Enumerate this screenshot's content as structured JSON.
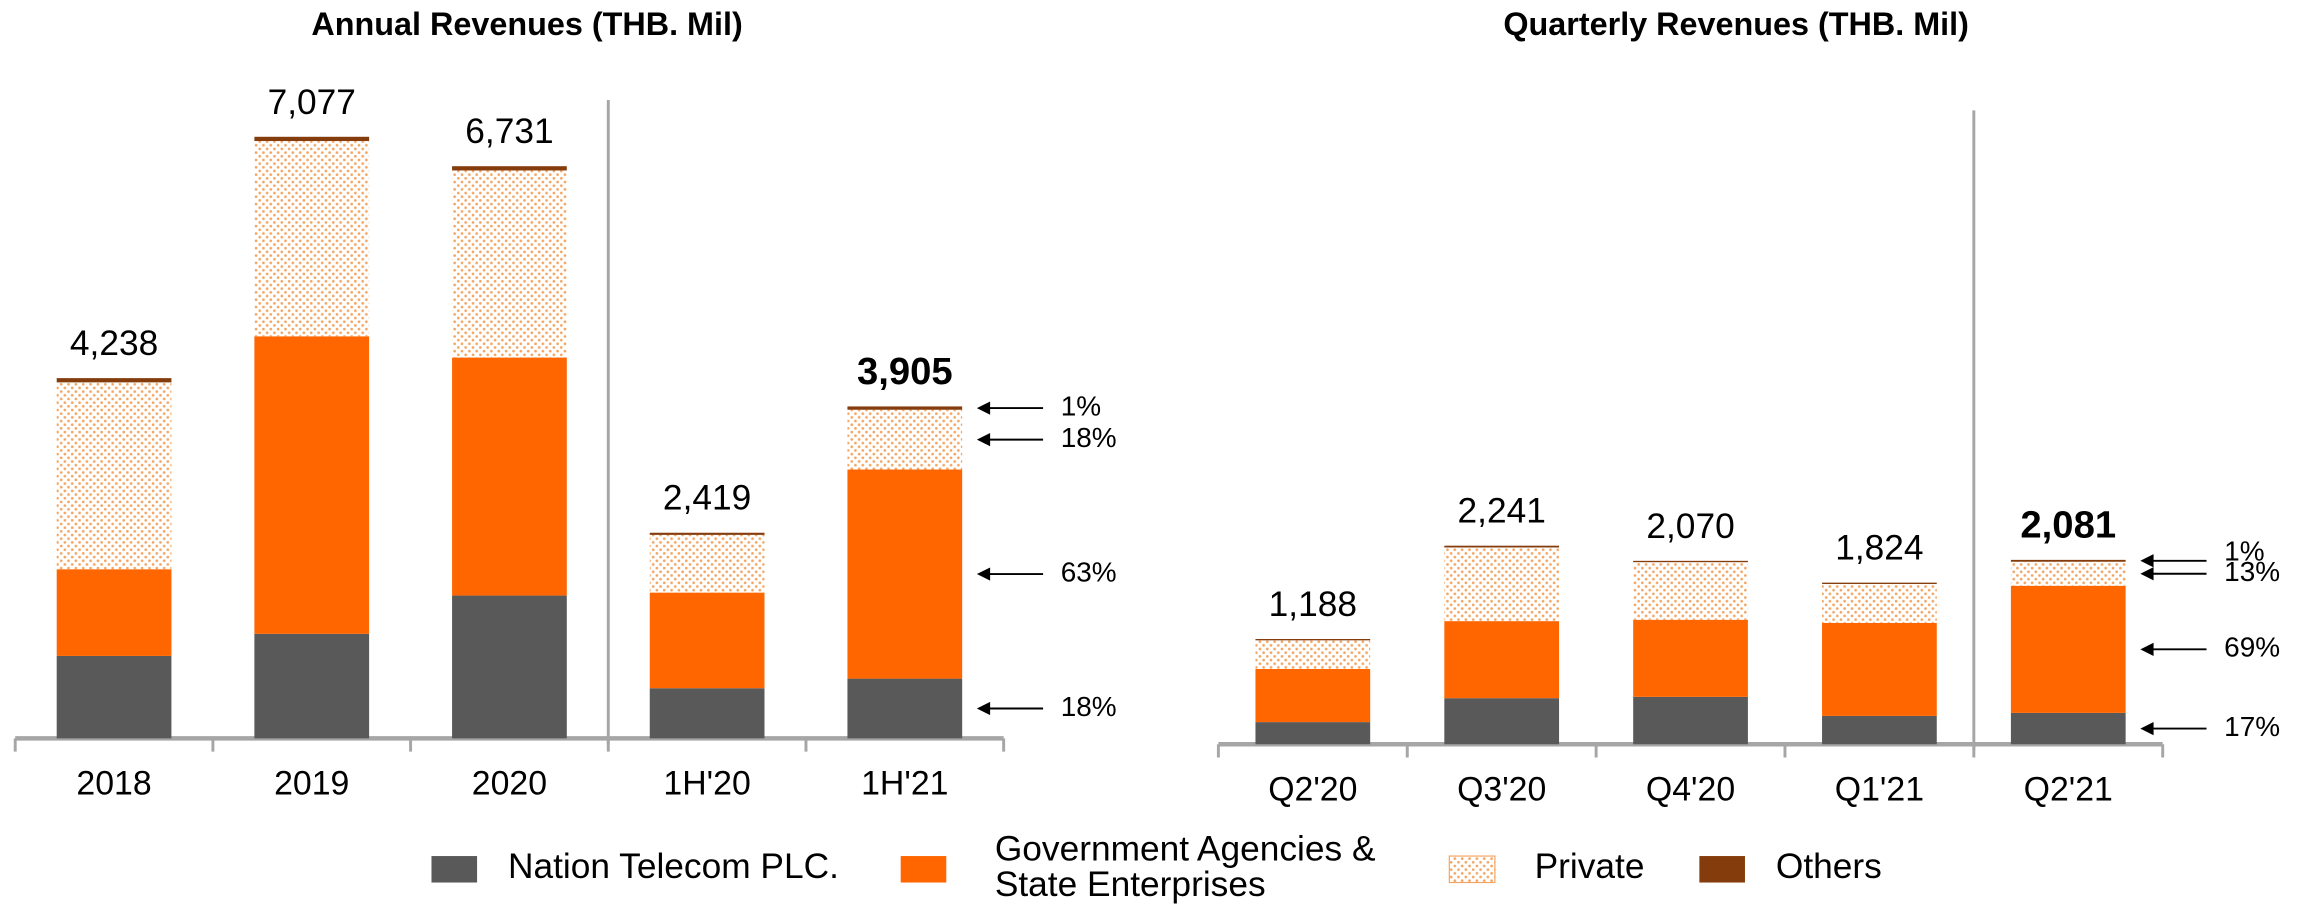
{
  "chart_data": [
    {
      "type": "stacked-bar",
      "title": "Annual Revenues (THB. Mil)",
      "categories": [
        "2018",
        "2019",
        "2020",
        "1H'20",
        "1H'21"
      ],
      "series": [
        {
          "name": "Nation Telecom PLC.",
          "color": "#595959",
          "values": [
            970,
            1230,
            1680,
            590,
            703
          ]
        },
        {
          "name": "Government Agencies & State Enterprises",
          "color": "#ff6600",
          "values": [
            1020,
            3500,
            2800,
            1125,
            2460
          ]
        },
        {
          "name": "Private",
          "color": "#f4a460",
          "pattern": "dots",
          "values": [
            2198,
            2297,
            2201,
            679,
            703
          ]
        },
        {
          "name": "Others",
          "color": "#843c0c",
          "values": [
            50,
            50,
            50,
            25,
            39
          ]
        }
      ],
      "totals": [
        4238,
        7077,
        6731,
        2419,
        3905
      ],
      "total_labels": [
        "4,238",
        "7,077",
        "6,731",
        "2,419",
        "3,905"
      ],
      "share_labels": [
        "18%",
        "63%",
        "18%",
        "1%"
      ]
    },
    {
      "type": "stacked-bar",
      "title": "Quarterly Revenues (THB. Mil)",
      "categories": [
        "Q2'20",
        "Q3'20",
        "Q4'20",
        "Q1'21",
        "Q2'21"
      ],
      "series": [
        {
          "color": "#595959",
          "values": [
            250,
            520,
            535,
            320,
            354
          ]
        },
        {
          "color": "#ff6600",
          "values": [
            600,
            870,
            870,
            1050,
            1435
          ]
        },
        {
          "color": "#f4a460",
          "pattern": "dots",
          "values": [
            323,
            831,
            650,
            439,
            271
          ]
        },
        {
          "color": "#843c0c",
          "values": [
            15,
            20,
            15,
            15,
            21
          ]
        }
      ],
      "totals": [
        1188,
        2241,
        2070,
        1824,
        2081
      ],
      "total_labels": [
        "1,188",
        "2,241",
        "2,070",
        "1,824",
        "2,081"
      ],
      "share_labels": [
        "17%",
        "69%",
        "13%",
        "1%"
      ]
    }
  ]
}
